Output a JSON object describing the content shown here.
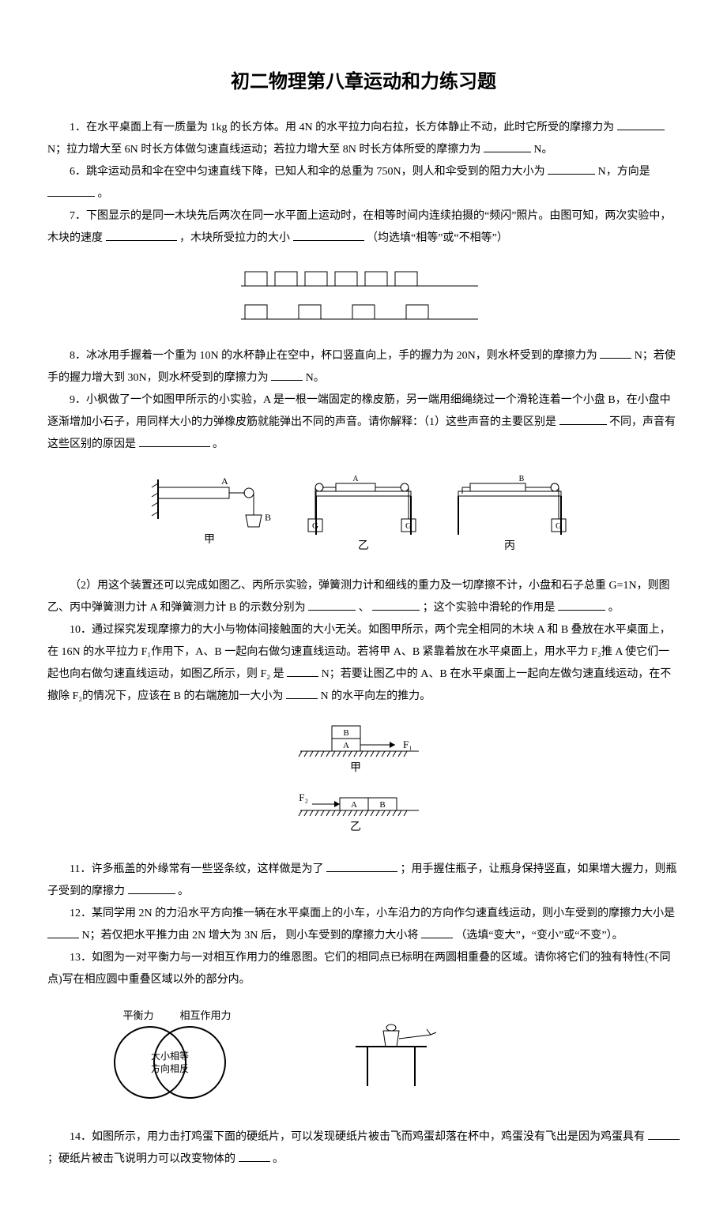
{
  "title": "初二物理第八章运动和力练习题",
  "q1": "1．在水平桌面上有一质量为 1kg 的长方体。用 4N 的水平拉力向右拉，长方体静止不动，此时它所受的摩擦力为",
  "q1b": "N；拉力增大至 6N 时长方体做匀速直线运动；若拉力增大至 8N 时长方体所受的摩擦力为",
  "q1c": "N。",
  "q6": "6．跳伞运动员和伞在空中匀速直线下降，已知人和伞的总重为 750N，则人和伞受到的阻力大小为",
  "q6b": " N，方向是",
  "q6c": "。",
  "q7": "7．下图显示的是同一木块先后两次在同一水平面上运动时，在相等时间内连续拍摄的“频闪”照片。由图可知，两次实验中，木块的速度",
  "q7b": "，木块所受拉力的大小",
  "q7c": "（均选填“相等”或“不相等”）",
  "q8": "8．冰冰用手握着一个重为 10N 的水杯静止在空中，杯口竖直向上，手的握力为 20N，则水杯受到的摩擦力为",
  "q8b": "N；若使手的握力增大到 30N，则水杯受到的摩擦力为",
  "q8c": "N。",
  "q9": "9．小枫做了一个如图甲所示的小实验，A 是一根一端固定的橡皮筋，另一端用细绳绕过一个滑轮连着一个小盘 B，在小盘中逐渐增加小石子，用同样大小的力弹橡皮筋就能弹出不同的声音。请你解释：（1）这些声音的主要区别是",
  "q9b": "不同，声音有这些区别的原因是",
  "q9c": "。",
  "q9_2": "（2）用这个装置还可以完成如图乙、丙所示实验，弹簧测力计和细线的重力及一切摩擦不计，小盘和石子总重 G=1N，则图乙、丙中弹簧测力计 A 和弹簧测力计 B 的示数分别为",
  "q9_2b": "、",
  "q9_2c": "；这个实验中滑轮的作用是",
  "q9_2d": "。",
  "q10": "10．通过探究发现摩擦力的大小与物体间接触面的大小无关。如图甲所示，两个完全相同的木块 A 和 B 叠放在水平桌面上，在 16N 的水平拉力 F₁作用下，A、B 一起向右做匀速直线运动。若将甲 A、B 紧靠着放在水平桌面上，用水平力 F₂推 A 使它们一起也向右做匀速直线运动，如图乙所示，则 F₂ 是",
  "q10b": "N；若要让图乙中的 A、B 在水平桌面上一起向左做匀速直线运动，在不撤除 F₂的情况下，应该在 B 的右端施加一大小为",
  "q10c": "N 的水平向左的推力。",
  "q11": "11．许多瓶盖的外缘常有一些竖条纹，这样做是为了",
  "q11b": "；用手握住瓶子，让瓶身保持竖直，如果增大握力，则瓶子受到的摩擦力",
  "q11c": " 。",
  "q12": "12．某同学用 2N 的力沿水平方向推一辆在水平桌面上的小车，小车沿力的方向作匀速直线运动，则小车受到的摩擦力大小是",
  "q12b": "N；若仅把水平推力由 2N 增大为 3N 后， 则小车受到的摩擦力大小将",
  "q12c": "（选填“变大”，“变小”或“不变”）。",
  "q13": "13．如图为一对平衡力与一对相互作用力的维恩图。它们的相同点已标明在两圆相重叠的区域。请你将它们的独有特性(不同点)写在相应圆中重叠区域以外的部分内。",
  "q14": "14．如图所示，用力击打鸡蛋下面的硬纸片，可以发现硬纸片被击飞而鸡蛋却落在杯中，鸡蛋没有飞出是因为鸡蛋具有",
  "q14b": "；硬纸片被击飞说明力可以改变物体的",
  "q14c": "。",
  "fig7": {
    "rows": 2,
    "blocks_row1": 6,
    "blocks_row2": 4,
    "block_w": 28,
    "block_h": 18,
    "gap1": 10,
    "gap2": 40,
    "line_w": 300,
    "color": "#000"
  },
  "fig9": {
    "labels": {
      "jia": "甲",
      "yi": "乙",
      "bing": "丙",
      "A": "A",
      "B": "B",
      "G": "G"
    },
    "color": "#000"
  },
  "fig10": {
    "labels": {
      "jia": "甲",
      "yi": "乙",
      "A": "A",
      "B": "B",
      "F1": "F₁",
      "F2": "F₂"
    },
    "color": "#000"
  },
  "fig13": {
    "labels": {
      "left": "平衡力",
      "right": "相互作用力",
      "mid1": "大小相等",
      "mid2": "方向相反"
    },
    "color": "#000"
  }
}
